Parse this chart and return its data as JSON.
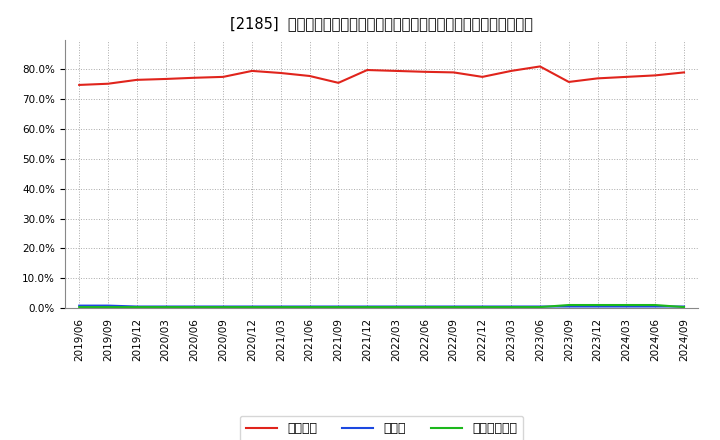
{
  "title": "[2185]  自己資本、のれん、繰延税金資産の総資産に対する比率の推移",
  "x_labels": [
    "2019/06",
    "2019/09",
    "2019/12",
    "2020/03",
    "2020/06",
    "2020/09",
    "2020/12",
    "2021/03",
    "2021/06",
    "2021/09",
    "2021/12",
    "2022/03",
    "2022/06",
    "2022/09",
    "2022/12",
    "2023/03",
    "2023/06",
    "2023/09",
    "2023/12",
    "2024/03",
    "2024/06",
    "2024/09"
  ],
  "equity_ratio": [
    74.8,
    75.2,
    76.5,
    76.8,
    77.2,
    77.5,
    79.5,
    78.8,
    77.8,
    75.5,
    79.8,
    79.5,
    79.2,
    79.0,
    77.5,
    79.5,
    81.0,
    75.8,
    77.0,
    77.5,
    78.0,
    79.0
  ],
  "goodwill_ratio": [
    0.8,
    0.8,
    0.5,
    0.5,
    0.5,
    0.5,
    0.5,
    0.5,
    0.5,
    0.5,
    0.5,
    0.5,
    0.5,
    0.5,
    0.5,
    0.5,
    0.5,
    0.5,
    0.5,
    0.5,
    0.5,
    0.5
  ],
  "deferred_tax_ratio": [
    0.3,
    0.3,
    0.3,
    0.3,
    0.3,
    0.3,
    0.3,
    0.3,
    0.3,
    0.3,
    0.3,
    0.3,
    0.3,
    0.3,
    0.3,
    0.3,
    0.3,
    1.0,
    1.0,
    1.0,
    1.0,
    0.3
  ],
  "equity_color": "#e0241c",
  "goodwill_color": "#1c48e0",
  "deferred_tax_color": "#1cb81c",
  "bg_color": "#ffffff",
  "plot_bg_color": "#ffffff",
  "grid_color": "#aaaaaa",
  "legend_labels": [
    "自己資本",
    "のれん",
    "繰延税金資産"
  ],
  "ylim": [
    0,
    90
  ],
  "yticks": [
    0,
    10,
    20,
    30,
    40,
    50,
    60,
    70,
    80
  ],
  "title_fontsize": 10.5,
  "tick_fontsize": 7.5,
  "legend_fontsize": 9
}
